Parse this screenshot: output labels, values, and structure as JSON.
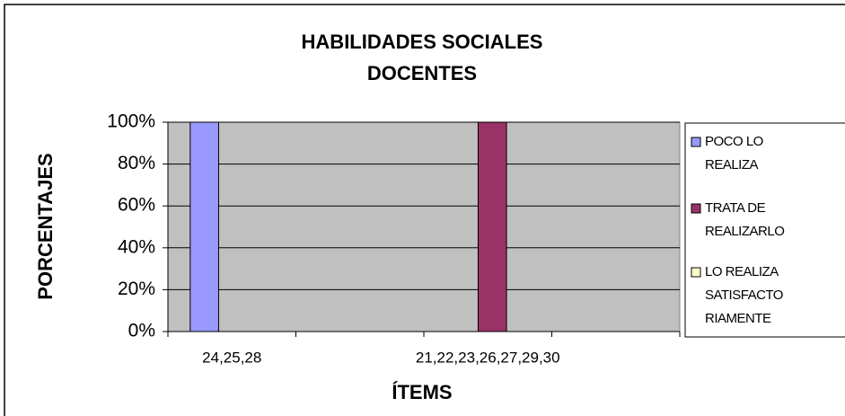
{
  "chart_data": {
    "type": "bar",
    "title": "HABILIDADES SOCIALES DOCENTES",
    "x_label": "ÍTEMS",
    "y_label": "PORCENTAJES",
    "categories": [
      "24,25,28",
      null,
      "21,22,23,26,27,29,30",
      null
    ],
    "series": [
      {
        "name": "POCO LO REALIZA",
        "color": "#9999ff",
        "values": [
          100,
          0,
          0,
          0
        ]
      },
      {
        "name": "TRATA DE REALIZARLO",
        "color": "#993366",
        "values": [
          0,
          0,
          100,
          0
        ]
      },
      {
        "name": "LO REALIZA SATISFACTORIAMENTE",
        "color": "#ffffcc",
        "values": [
          0,
          0,
          0,
          0
        ]
      }
    ],
    "ylim": [
      0,
      100
    ],
    "yticks": [
      {
        "value": 0,
        "label": "0%"
      },
      {
        "value": 20,
        "label": "20%"
      },
      {
        "value": 40,
        "label": "40%"
      },
      {
        "value": 60,
        "label": "60%"
      },
      {
        "value": 80,
        "label": "80%"
      },
      {
        "value": 100,
        "label": "100%"
      }
    ],
    "grid": true,
    "legend": "right"
  }
}
